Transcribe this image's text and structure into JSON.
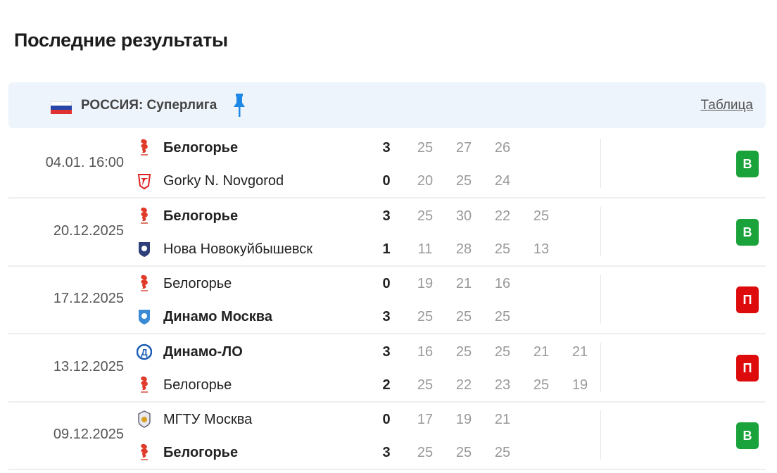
{
  "title": "Последние результаты",
  "league": {
    "name": "РОССИЯ: Суперлига",
    "table_link": "Таблица",
    "flag_icon": "russia-flag-icon",
    "pin_icon": "pin-icon"
  },
  "colors": {
    "win": "#1aa33a",
    "loss": "#dd0b0b",
    "header_bg": "#eef4fb",
    "pin": "#1e88e5"
  },
  "matches": [
    {
      "date": "04.01. 16:00",
      "result": "В",
      "outcome": "win",
      "home": {
        "name": "Белогорье",
        "logo": "belogorie-logo",
        "score": "3",
        "sets": [
          "25",
          "27",
          "26"
        ],
        "winner": true
      },
      "away": {
        "name": "Gorky N. Novgorod",
        "logo": "gorky-logo",
        "score": "0",
        "sets": [
          "20",
          "25",
          "24"
        ],
        "winner": false
      }
    },
    {
      "date": "20.12.2025",
      "result": "В",
      "outcome": "win",
      "home": {
        "name": "Белогорье",
        "logo": "belogorie-logo",
        "score": "3",
        "sets": [
          "25",
          "30",
          "22",
          "25"
        ],
        "winner": true
      },
      "away": {
        "name": "Нова Новокуйбышевск",
        "logo": "nova-logo",
        "score": "1",
        "sets": [
          "11",
          "28",
          "25",
          "13"
        ],
        "winner": false
      }
    },
    {
      "date": "17.12.2025",
      "result": "П",
      "outcome": "loss",
      "home": {
        "name": "Белогорье",
        "logo": "belogorie-logo",
        "score": "0",
        "sets": [
          "19",
          "21",
          "16"
        ],
        "winner": false
      },
      "away": {
        "name": "Динамо Москва",
        "logo": "dynamo-moscow-logo",
        "score": "3",
        "sets": [
          "25",
          "25",
          "25"
        ],
        "winner": true
      }
    },
    {
      "date": "13.12.2025",
      "result": "П",
      "outcome": "loss",
      "home": {
        "name": "Динамо-ЛО",
        "logo": "dynamo-lo-logo",
        "score": "3",
        "sets": [
          "16",
          "25",
          "25",
          "21",
          "21"
        ],
        "winner": true
      },
      "away": {
        "name": "Белогорье",
        "logo": "belogorie-logo",
        "score": "2",
        "sets": [
          "25",
          "22",
          "23",
          "25",
          "19"
        ],
        "winner": false
      }
    },
    {
      "date": "09.12.2025",
      "result": "В",
      "outcome": "win",
      "home": {
        "name": "МГТУ Москва",
        "logo": "mgtu-logo",
        "score": "0",
        "sets": [
          "17",
          "19",
          "21"
        ],
        "winner": false
      },
      "away": {
        "name": "Белогорье",
        "logo": "belogorie-logo",
        "score": "3",
        "sets": [
          "25",
          "25",
          "25"
        ],
        "winner": true
      }
    }
  ]
}
